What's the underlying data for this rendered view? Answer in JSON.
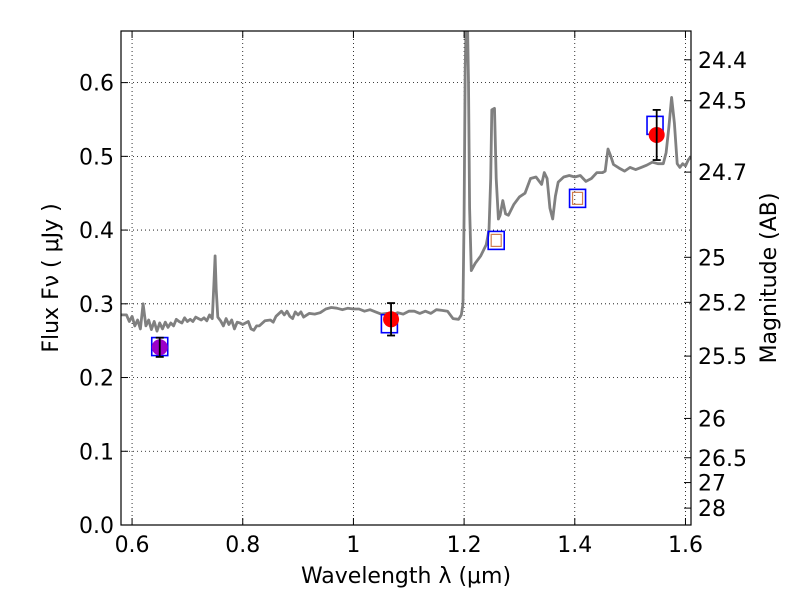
{
  "chart_data": {
    "type": "scatter",
    "title": "",
    "xlabel": "Wavelength  λ (μm)",
    "ylabel": "Flux  Fν  ( μJy )",
    "ylabel_right": "Magnitude (AB)",
    "xlim": [
      0.58,
      1.61
    ],
    "ylim": [
      0.0,
      0.67
    ],
    "grid": true,
    "x_ticks": [
      0.6,
      0.8,
      1.0,
      1.2,
      1.4,
      1.6
    ],
    "x_tick_labels": [
      "0.6",
      "0.8",
      "1",
      "1.2",
      "1.4",
      "1.6"
    ],
    "y_ticks": [
      0.0,
      0.1,
      0.2,
      0.3,
      0.4,
      0.5,
      0.6
    ],
    "y_tick_labels": [
      "0.0",
      "0.1",
      "0.2",
      "0.3",
      "0.4",
      "0.5",
      "0.6"
    ],
    "right_axis": {
      "scale": "AB magnitude",
      "ticks": [
        {
          "mag": 24.4,
          "label": "24.4"
        },
        {
          "mag": 24.5,
          "label": "24.5"
        },
        {
          "mag": 24.7,
          "label": "24.7"
        },
        {
          "mag": 25.0,
          "label": "25"
        },
        {
          "mag": 25.2,
          "label": "25.2"
        },
        {
          "mag": 25.5,
          "label": "25.5"
        },
        {
          "mag": 26.0,
          "label": "26"
        },
        {
          "mag": 26.5,
          "label": "26.5"
        },
        {
          "mag": 27.0,
          "label": "27"
        },
        {
          "mag": 28.0,
          "label": "28"
        }
      ]
    },
    "series": [
      {
        "kind": "line",
        "color": "#808080",
        "points": [
          [
            0.58,
            0.285
          ],
          [
            0.59,
            0.285
          ],
          [
            0.595,
            0.276
          ],
          [
            0.6,
            0.283
          ],
          [
            0.605,
            0.27
          ],
          [
            0.61,
            0.278
          ],
          [
            0.615,
            0.266
          ],
          [
            0.62,
            0.3
          ],
          [
            0.625,
            0.27
          ],
          [
            0.63,
            0.278
          ],
          [
            0.635,
            0.265
          ],
          [
            0.64,
            0.276
          ],
          [
            0.645,
            0.263
          ],
          [
            0.65,
            0.274
          ],
          [
            0.655,
            0.266
          ],
          [
            0.66,
            0.275
          ],
          [
            0.665,
            0.268
          ],
          [
            0.67,
            0.274
          ],
          [
            0.675,
            0.27
          ],
          [
            0.68,
            0.279
          ],
          [
            0.685,
            0.276
          ],
          [
            0.69,
            0.274
          ],
          [
            0.695,
            0.281
          ],
          [
            0.7,
            0.276
          ],
          [
            0.705,
            0.279
          ],
          [
            0.71,
            0.276
          ],
          [
            0.715,
            0.282
          ],
          [
            0.72,
            0.28
          ],
          [
            0.725,
            0.278
          ],
          [
            0.73,
            0.281
          ],
          [
            0.735,
            0.277
          ],
          [
            0.74,
            0.285
          ],
          [
            0.745,
            0.28
          ],
          [
            0.748,
            0.33
          ],
          [
            0.75,
            0.365
          ],
          [
            0.752,
            0.32
          ],
          [
            0.755,
            0.282
          ],
          [
            0.76,
            0.277
          ],
          [
            0.765,
            0.27
          ],
          [
            0.77,
            0.28
          ],
          [
            0.775,
            0.272
          ],
          [
            0.78,
            0.278
          ],
          [
            0.785,
            0.266
          ],
          [
            0.79,
            0.275
          ],
          [
            0.795,
            0.274
          ],
          [
            0.8,
            0.272
          ],
          [
            0.81,
            0.276
          ],
          [
            0.815,
            0.266
          ],
          [
            0.82,
            0.264
          ],
          [
            0.825,
            0.27
          ],
          [
            0.83,
            0.27
          ],
          [
            0.84,
            0.277
          ],
          [
            0.85,
            0.278
          ],
          [
            0.855,
            0.275
          ],
          [
            0.86,
            0.283
          ],
          [
            0.87,
            0.29
          ],
          [
            0.875,
            0.285
          ],
          [
            0.88,
            0.29
          ],
          [
            0.885,
            0.283
          ],
          [
            0.89,
            0.28
          ],
          [
            0.895,
            0.289
          ],
          [
            0.9,
            0.285
          ],
          [
            0.905,
            0.289
          ],
          [
            0.91,
            0.282
          ],
          [
            0.92,
            0.287
          ],
          [
            0.93,
            0.286
          ],
          [
            0.94,
            0.288
          ],
          [
            0.95,
            0.293
          ],
          [
            0.96,
            0.295
          ],
          [
            0.97,
            0.294
          ],
          [
            0.98,
            0.292
          ],
          [
            0.99,
            0.294
          ],
          [
            1.0,
            0.293
          ],
          [
            1.01,
            0.293
          ],
          [
            1.02,
            0.29
          ],
          [
            1.03,
            0.292
          ],
          [
            1.04,
            0.289
          ],
          [
            1.05,
            0.286
          ],
          [
            1.06,
            0.287
          ],
          [
            1.07,
            0.285
          ],
          [
            1.08,
            0.288
          ],
          [
            1.09,
            0.286
          ],
          [
            1.1,
            0.29
          ],
          [
            1.11,
            0.29
          ],
          [
            1.12,
            0.287
          ],
          [
            1.13,
            0.29
          ],
          [
            1.14,
            0.287
          ],
          [
            1.15,
            0.292
          ],
          [
            1.16,
            0.291
          ],
          [
            1.17,
            0.29
          ],
          [
            1.18,
            0.28
          ],
          [
            1.19,
            0.279
          ],
          [
            1.195,
            0.285
          ],
          [
            1.198,
            0.3
          ],
          [
            1.2,
            0.42
          ],
          [
            1.202,
            0.62
          ],
          [
            1.204,
            0.69
          ],
          [
            1.206,
            0.69
          ],
          [
            1.208,
            0.6
          ],
          [
            1.21,
            0.43
          ],
          [
            1.213,
            0.345
          ],
          [
            1.22,
            0.355
          ],
          [
            1.23,
            0.365
          ],
          [
            1.24,
            0.38
          ],
          [
            1.245,
            0.4
          ],
          [
            1.248,
            0.47
          ],
          [
            1.25,
            0.563
          ],
          [
            1.255,
            0.565
          ],
          [
            1.258,
            0.47
          ],
          [
            1.262,
            0.415
          ],
          [
            1.265,
            0.42
          ],
          [
            1.27,
            0.44
          ],
          [
            1.275,
            0.422
          ],
          [
            1.28,
            0.42
          ],
          [
            1.29,
            0.435
          ],
          [
            1.3,
            0.445
          ],
          [
            1.31,
            0.45
          ],
          [
            1.32,
            0.47
          ],
          [
            1.33,
            0.472
          ],
          [
            1.34,
            0.462
          ],
          [
            1.345,
            0.478
          ],
          [
            1.35,
            0.47
          ],
          [
            1.355,
            0.43
          ],
          [
            1.36,
            0.415
          ],
          [
            1.365,
            0.446
          ],
          [
            1.37,
            0.465
          ],
          [
            1.38,
            0.472
          ],
          [
            1.39,
            0.474
          ],
          [
            1.4,
            0.472
          ],
          [
            1.41,
            0.474
          ],
          [
            1.42,
            0.466
          ],
          [
            1.43,
            0.47
          ],
          [
            1.44,
            0.478
          ],
          [
            1.45,
            0.478
          ],
          [
            1.455,
            0.48
          ],
          [
            1.46,
            0.51
          ],
          [
            1.465,
            0.5
          ],
          [
            1.47,
            0.489
          ],
          [
            1.48,
            0.484
          ],
          [
            1.49,
            0.48
          ],
          [
            1.5,
            0.485
          ],
          [
            1.51,
            0.482
          ],
          [
            1.52,
            0.485
          ],
          [
            1.53,
            0.488
          ],
          [
            1.54,
            0.492
          ],
          [
            1.55,
            0.49
          ],
          [
            1.56,
            0.49
          ],
          [
            1.565,
            0.505
          ],
          [
            1.57,
            0.54
          ],
          [
            1.575,
            0.58
          ],
          [
            1.58,
            0.545
          ],
          [
            1.585,
            0.49
          ],
          [
            1.59,
            0.485
          ],
          [
            1.595,
            0.49
          ],
          [
            1.6,
            0.487
          ],
          [
            1.605,
            0.495
          ],
          [
            1.61,
            0.5
          ]
        ]
      },
      {
        "kind": "model_squares",
        "edge_color": "#0000ff",
        "points": [
          [
            0.65,
            0.242
          ],
          [
            1.065,
            0.273
          ],
          [
            1.545,
            0.542
          ]
        ]
      },
      {
        "kind": "model_squares_inner",
        "edge_color": "#0000ff",
        "inner_color": "#d08050",
        "points": [
          [
            1.258,
            0.386
          ],
          [
            1.405,
            0.443
          ]
        ]
      },
      {
        "kind": "observed",
        "color": "#ff0000",
        "points": [
          {
            "x": 0.65,
            "y": 0.241,
            "err": 0.013,
            "color": "#9b00c8"
          },
          {
            "x": 1.068,
            "y": 0.279,
            "err": 0.022,
            "color": "#ff0000"
          },
          {
            "x": 1.548,
            "y": 0.529,
            "err": 0.034,
            "color": "#ff0000"
          }
        ]
      }
    ]
  }
}
